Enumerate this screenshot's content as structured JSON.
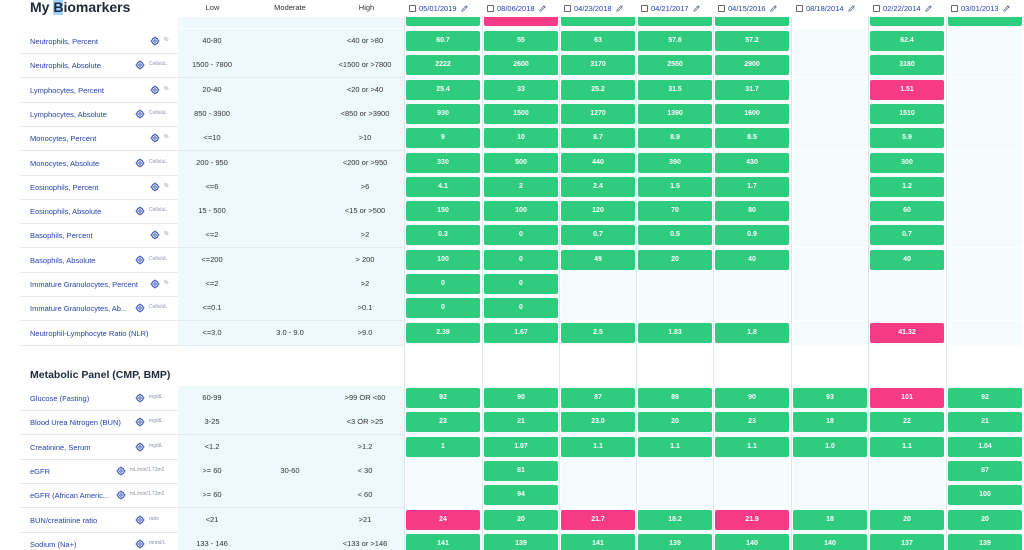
{
  "title": "My Biomarkers",
  "columns": {
    "low": "Low",
    "moderate": "Moderate",
    "high": "High"
  },
  "dates": [
    "05/01/2019",
    "08/06/2018",
    "04/23/2018",
    "04/21/2017",
    "04/15/2016",
    "08/18/2014",
    "02/22/2014",
    "03/01/2013"
  ],
  "colors": {
    "normal": "#2ecc7c",
    "flagged": "#f53b85",
    "link": "#2541b2"
  },
  "sections": [
    {
      "title": "",
      "rows": [
        {
          "name": "Neutrophils, Percent",
          "unit": "%",
          "low": "40-80",
          "moderate": "",
          "high": "<40 or >80",
          "values": [
            {
              "v": "60.7",
              "f": false
            },
            {
              "v": "55",
              "f": false
            },
            {
              "v": "63",
              "f": false
            },
            {
              "v": "57.6",
              "f": false
            },
            {
              "v": "57.2",
              "f": false
            },
            null,
            {
              "v": "62.4",
              "f": false
            },
            null
          ]
        },
        {
          "name": "Neutrophils, Absolute",
          "unit": "Cells/uL",
          "low": "1500 - 7800",
          "moderate": "",
          "high": "<1500 or >7800",
          "values": [
            {
              "v": "2222",
              "f": false
            },
            {
              "v": "2600",
              "f": false
            },
            {
              "v": "3170",
              "f": false
            },
            {
              "v": "2550",
              "f": false
            },
            {
              "v": "2900",
              "f": false
            },
            null,
            {
              "v": "3180",
              "f": false
            },
            null
          ]
        },
        {
          "name": "Lymphocytes, Percent",
          "unit": "%",
          "low": "20-40",
          "moderate": "",
          "high": "<20 or >40",
          "values": [
            {
              "v": "25.4",
              "f": false
            },
            {
              "v": "33",
              "f": false
            },
            {
              "v": "25.2",
              "f": false
            },
            {
              "v": "31.5",
              "f": false
            },
            {
              "v": "31.7",
              "f": false
            },
            null,
            {
              "v": "1.51",
              "f": true
            },
            null
          ]
        },
        {
          "name": "Lymphocytes, Absolute",
          "unit": "Cells/uL",
          "low": "850 - 3900",
          "moderate": "",
          "high": "<850 or >3900",
          "values": [
            {
              "v": "930",
              "f": false
            },
            {
              "v": "1500",
              "f": false
            },
            {
              "v": "1270",
              "f": false
            },
            {
              "v": "1390",
              "f": false
            },
            {
              "v": "1600",
              "f": false
            },
            null,
            {
              "v": "1510",
              "f": false
            },
            null
          ]
        },
        {
          "name": "Monocytes, Percent",
          "unit": "%",
          "low": "<=10",
          "moderate": "",
          "high": ">10",
          "values": [
            {
              "v": "9",
              "f": false
            },
            {
              "v": "10",
              "f": false
            },
            {
              "v": "8.7",
              "f": false
            },
            {
              "v": "8.9",
              "f": false
            },
            {
              "v": "8.5",
              "f": false
            },
            null,
            {
              "v": "5.9",
              "f": false
            },
            null
          ]
        },
        {
          "name": "Monocytes, Absolute",
          "unit": "Cells/uL",
          "low": "200 - 950",
          "moderate": "",
          "high": "<200 or >950",
          "values": [
            {
              "v": "330",
              "f": false
            },
            {
              "v": "500",
              "f": false
            },
            {
              "v": "440",
              "f": false
            },
            {
              "v": "390",
              "f": false
            },
            {
              "v": "430",
              "f": false
            },
            null,
            {
              "v": "300",
              "f": false
            },
            null
          ]
        },
        {
          "name": "Eosinophils, Percent",
          "unit": "%",
          "low": "<=6",
          "moderate": "",
          "high": ">6",
          "values": [
            {
              "v": "4.1",
              "f": false
            },
            {
              "v": "2",
              "f": false
            },
            {
              "v": "2.4",
              "f": false
            },
            {
              "v": "1.5",
              "f": false
            },
            {
              "v": "1.7",
              "f": false
            },
            null,
            {
              "v": "1.2",
              "f": false
            },
            null
          ]
        },
        {
          "name": "Eosinophils, Absolute",
          "unit": "Cells/uL",
          "low": "15 - 500",
          "moderate": "",
          "high": "<15 or >500",
          "values": [
            {
              "v": "150",
              "f": false
            },
            {
              "v": "100",
              "f": false
            },
            {
              "v": "120",
              "f": false
            },
            {
              "v": "70",
              "f": false
            },
            {
              "v": "80",
              "f": false
            },
            null,
            {
              "v": "60",
              "f": false
            },
            null
          ]
        },
        {
          "name": "Basophils, Percent",
          "unit": "%",
          "low": "<=2",
          "moderate": "",
          "high": ">2",
          "values": [
            {
              "v": "0.3",
              "f": false
            },
            {
              "v": "0",
              "f": false
            },
            {
              "v": "0.7",
              "f": false
            },
            {
              "v": "0.5",
              "f": false
            },
            {
              "v": "0.9",
              "f": false
            },
            null,
            {
              "v": "0.7",
              "f": false
            },
            null
          ]
        },
        {
          "name": "Basophils, Absolute",
          "unit": "Cells/uL",
          "low": "<=200",
          "moderate": "",
          "high": "> 200",
          "values": [
            {
              "v": "100",
              "f": false
            },
            {
              "v": "0",
              "f": false
            },
            {
              "v": "49",
              "f": false
            },
            {
              "v": "20",
              "f": false
            },
            {
              "v": "40",
              "f": false
            },
            null,
            {
              "v": "40",
              "f": false
            },
            null
          ]
        },
        {
          "name": "Immature Granulocytes, Percent",
          "unit": "%",
          "low": "<=2",
          "moderate": "",
          "high": ">2",
          "values": [
            {
              "v": "0",
              "f": false
            },
            {
              "v": "0",
              "f": false
            },
            null,
            null,
            null,
            null,
            null,
            null
          ]
        },
        {
          "name": "Immature Granulocytes, Ab...",
          "unit": "Cells/uL",
          "low": "<=0.1",
          "moderate": "",
          "high": ">0.1",
          "values": [
            {
              "v": "0",
              "f": false
            },
            {
              "v": "0",
              "f": false
            },
            null,
            null,
            null,
            null,
            null,
            null
          ]
        },
        {
          "name": "Neutrophil-Lymphocyte Ratio (NLR)",
          "unit": "",
          "low": "<=3.0",
          "moderate": "3.0 - 9.0",
          "high": ">9.0",
          "values": [
            {
              "v": "2.39",
              "f": false
            },
            {
              "v": "1.67",
              "f": false
            },
            {
              "v": "2.5",
              "f": false
            },
            {
              "v": "1.83",
              "f": false
            },
            {
              "v": "1.8",
              "f": false
            },
            null,
            {
              "v": "41.32",
              "f": true
            },
            null
          ]
        }
      ]
    },
    {
      "title": "Metabolic Panel (CMP, BMP)",
      "rows": [
        {
          "name": "Glucose (Fasting)",
          "unit": "mg/dL",
          "low": "60-99",
          "moderate": "",
          "high": ">99 OR <60",
          "values": [
            {
              "v": "92",
              "f": false
            },
            {
              "v": "90",
              "f": false
            },
            {
              "v": "87",
              "f": false
            },
            {
              "v": "89",
              "f": false
            },
            {
              "v": "90",
              "f": false
            },
            {
              "v": "93",
              "f": false
            },
            {
              "v": "101",
              "f": true
            },
            {
              "v": "92",
              "f": false
            }
          ]
        },
        {
          "name": "Blood Urea Nitrogen (BUN)",
          "unit": "mg/dL",
          "low": "3-25",
          "moderate": "",
          "high": "<3 OR >25",
          "values": [
            {
              "v": "23",
              "f": false
            },
            {
              "v": "21",
              "f": false
            },
            {
              "v": "23.0",
              "f": false
            },
            {
              "v": "20",
              "f": false
            },
            {
              "v": "23",
              "f": false
            },
            {
              "v": "18",
              "f": false
            },
            {
              "v": "22",
              "f": false
            },
            {
              "v": "21",
              "f": false
            }
          ]
        },
        {
          "name": "Creatinine, Serum",
          "unit": "mg/dL",
          "low": "<1.2",
          "moderate": "",
          "high": ">1.2",
          "values": [
            {
              "v": "1",
              "f": false
            },
            {
              "v": "1.07",
              "f": false
            },
            {
              "v": "1.1",
              "f": false
            },
            {
              "v": "1.1",
              "f": false
            },
            {
              "v": "1.1",
              "f": false
            },
            {
              "v": "1.0",
              "f": false
            },
            {
              "v": "1.1",
              "f": false
            },
            {
              "v": "1.04",
              "f": false
            }
          ]
        },
        {
          "name": "eGFR",
          "unit": "mL/min/1.73m2",
          "low": ">= 60",
          "moderate": "30-60",
          "high": "< 30",
          "values": [
            null,
            {
              "v": "81",
              "f": false
            },
            null,
            null,
            null,
            null,
            null,
            {
              "v": "87",
              "f": false
            }
          ]
        },
        {
          "name": "eGFR (African Americ...",
          "unit": "mL/min/1.73m2",
          "low": ">= 60",
          "moderate": "",
          "high": "< 60",
          "values": [
            null,
            {
              "v": "94",
              "f": false
            },
            null,
            null,
            null,
            null,
            null,
            {
              "v": "100",
              "f": false
            }
          ]
        },
        {
          "name": "BUN/creatinine ratio",
          "unit": "ratio",
          "low": "<21",
          "moderate": "",
          "high": ">21",
          "values": [
            {
              "v": "24",
              "f": true
            },
            {
              "v": "20",
              "f": false
            },
            {
              "v": "21.7",
              "f": true
            },
            {
              "v": "18.2",
              "f": false
            },
            {
              "v": "21.9",
              "f": true
            },
            {
              "v": "18",
              "f": false
            },
            {
              "v": "20",
              "f": false
            },
            {
              "v": "20",
              "f": false
            }
          ]
        },
        {
          "name": "Sodium (Na+)",
          "unit": "mmol/L",
          "low": "133 - 146",
          "moderate": "",
          "high": "<133 or >146",
          "values": [
            {
              "v": "141",
              "f": false
            },
            {
              "v": "139",
              "f": false
            },
            {
              "v": "141",
              "f": false
            },
            {
              "v": "139",
              "f": false
            },
            {
              "v": "140",
              "f": false
            },
            {
              "v": "140",
              "f": false
            },
            {
              "v": "137",
              "f": false
            },
            {
              "v": "139",
              "f": false
            }
          ]
        }
      ]
    }
  ]
}
